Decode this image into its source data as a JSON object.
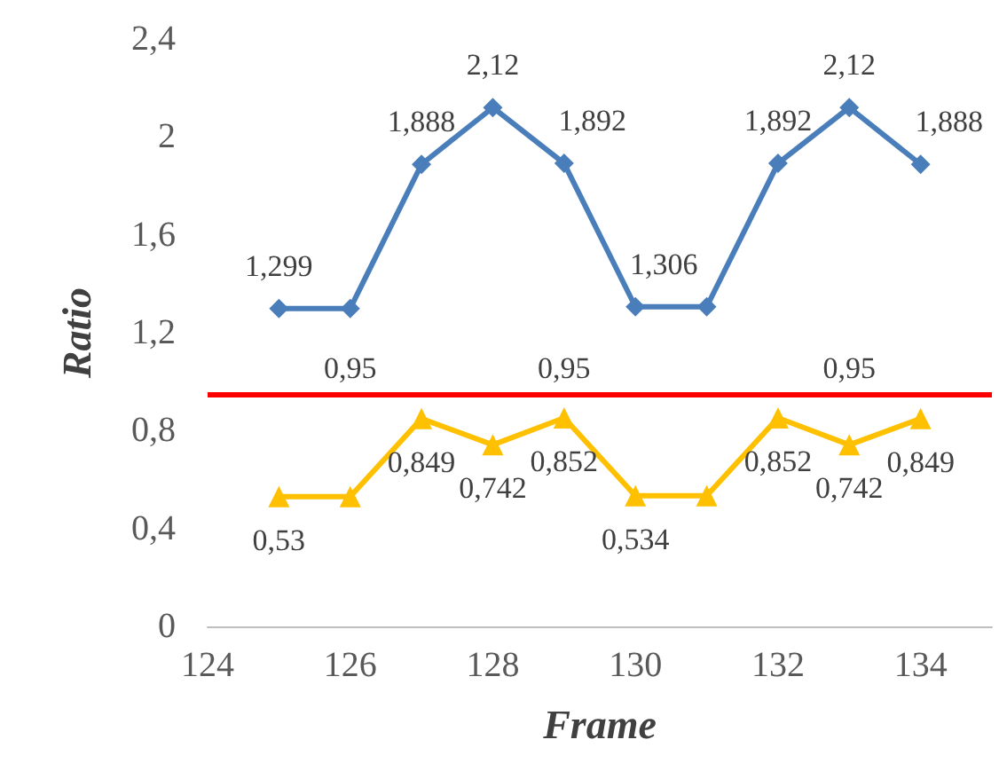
{
  "chart_data": {
    "type": "line",
    "xlabel": "Frame",
    "ylabel": "Ratio",
    "x": [
      125,
      126,
      127,
      128,
      129,
      130,
      131,
      132,
      133,
      134
    ],
    "series": [
      {
        "color": "#4a7ebb",
        "marker": "diamond",
        "values": [
          1.299,
          1.299,
          1.888,
          2.12,
          1.892,
          1.306,
          1.306,
          1.892,
          2.12,
          1.888
        ],
        "value_labels": [
          "1,299",
          null,
          "1,888",
          "2,12",
          "1,892",
          "1,306",
          null,
          "1,892",
          "2,12",
          "1,888"
        ]
      },
      {
        "color": "#ffc000",
        "marker": "triangle",
        "values": [
          0.53,
          0.53,
          0.849,
          0.742,
          0.852,
          0.534,
          0.534,
          0.852,
          0.742,
          0.849
        ],
        "value_labels": [
          "0,53",
          null,
          "0,849",
          "0,742",
          "0,852",
          "0,534",
          null,
          "0,852",
          "0,742",
          "0,849"
        ]
      }
    ],
    "ref_lines": [
      {
        "axis": "y",
        "value": 0.95,
        "color": "#ff0000"
      }
    ],
    "annotations": [
      {
        "text": "0,95",
        "x": 126,
        "y": 0.95
      },
      {
        "text": "0,95",
        "x": 129,
        "y": 0.95
      },
      {
        "text": "0,95",
        "x": 133,
        "y": 0.95
      }
    ],
    "xlim": [
      124,
      135
    ],
    "xticks": [
      124,
      126,
      128,
      130,
      132,
      134
    ],
    "ylim": [
      0,
      2.4
    ],
    "yticks": [
      {
        "value": 0,
        "label": "0"
      },
      {
        "value": 0.4,
        "label": "0,4"
      },
      {
        "value": 0.8,
        "label": "0,8"
      },
      {
        "value": 1.2,
        "label": "1,2"
      },
      {
        "value": 1.6,
        "label": "1,6"
      },
      {
        "value": 2,
        "label": "2"
      },
      {
        "value": 2.4,
        "label": "2,4"
      }
    ],
    "grid": false,
    "line_style": "solid"
  }
}
